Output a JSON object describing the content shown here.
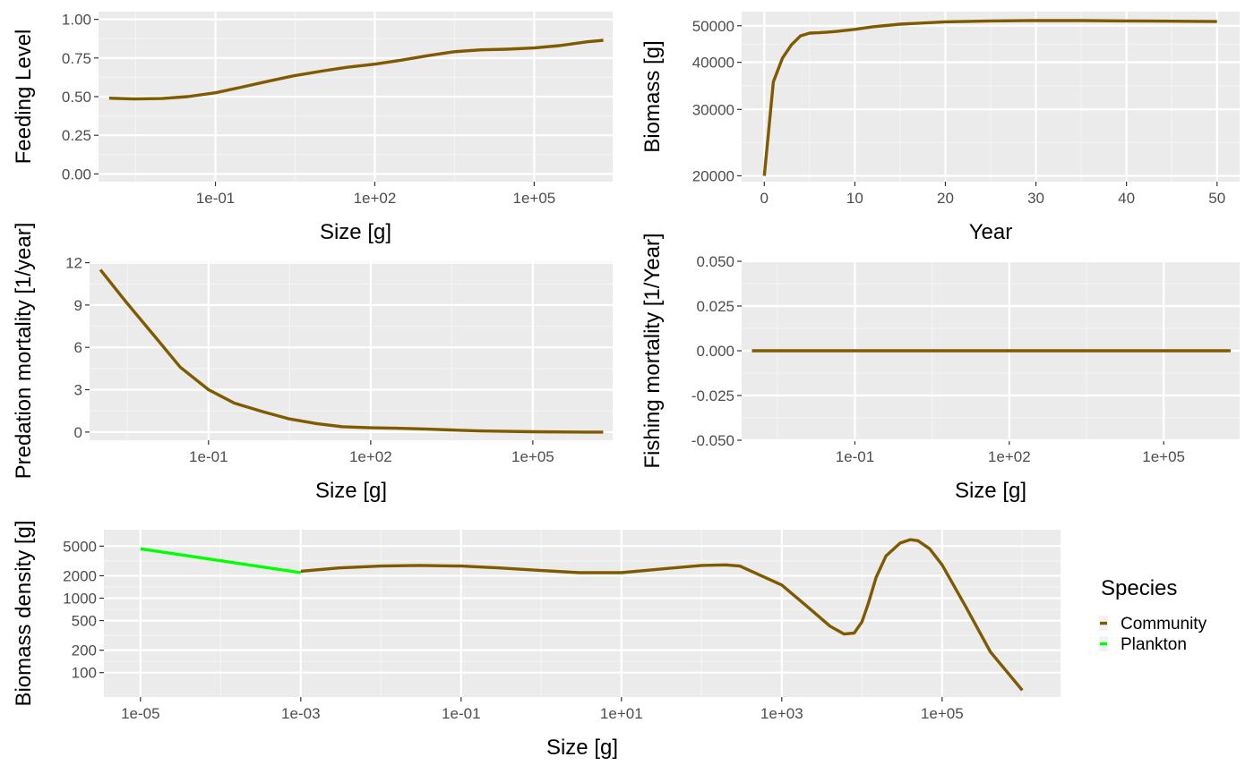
{
  "colors": {
    "panel_bg": "#EBEBEB",
    "grid_major": "#FFFFFF",
    "grid_minor": "#F4F4F4",
    "tick_text": "#4D4D4D",
    "community": "#7F5A00",
    "plankton": "#00FF00"
  },
  "chart_data": [
    {
      "type": "line",
      "xlabel": "Size [g]",
      "ylabel": "Feeding Level",
      "xscale": "log10",
      "xlim": [
        0.00063,
        3000000
      ],
      "ylim": [
        -0.05,
        1.05
      ],
      "xticks": [
        0.1,
        100,
        100000
      ],
      "xtick_labels": [
        "1e-01",
        "1e+02",
        "1e+05"
      ],
      "yticks": [
        0,
        0.25,
        0.5,
        0.75,
        1.0
      ],
      "ytick_labels": [
        "0.00",
        "0.25",
        "0.50",
        "0.75",
        "1.00"
      ],
      "grid": true,
      "series": [
        {
          "name": "Community",
          "x": [
            0.001,
            0.003,
            0.01,
            0.03,
            0.1,
            0.3,
            1,
            3,
            10,
            30,
            100,
            300,
            1000,
            3000,
            10000,
            30000,
            100000,
            300000,
            1000000,
            2000000
          ],
          "y": [
            0.49,
            0.485,
            0.488,
            0.5,
            0.525,
            0.56,
            0.6,
            0.635,
            0.665,
            0.69,
            0.71,
            0.735,
            0.765,
            0.79,
            0.803,
            0.807,
            0.815,
            0.83,
            0.855,
            0.865
          ]
        }
      ]
    },
    {
      "type": "line",
      "xlabel": "Year",
      "ylabel": "Biomass [g]",
      "yscale": "log10",
      "xlim": [
        -2.5,
        52.5
      ],
      "ylim": [
        19300,
        54500
      ],
      "xticks": [
        0,
        10,
        20,
        30,
        40,
        50
      ],
      "xtick_labels": [
        "0",
        "10",
        "20",
        "30",
        "40",
        "50"
      ],
      "yticks": [
        20000,
        30000,
        40000,
        50000
      ],
      "ytick_labels": [
        "20000",
        "30000",
        "40000",
        "50000"
      ],
      "grid": true,
      "series": [
        {
          "name": "Community",
          "x": [
            0,
            1,
            2,
            3,
            4,
            5,
            6,
            7,
            8,
            10,
            12,
            15,
            20,
            25,
            30,
            35,
            40,
            45,
            50
          ],
          "y": [
            20000,
            35500,
            41000,
            44500,
            47000,
            47800,
            47900,
            48100,
            48300,
            48900,
            49700,
            50500,
            51200,
            51500,
            51600,
            51600,
            51500,
            51400,
            51300
          ]
        }
      ]
    },
    {
      "type": "line",
      "xlabel": "Size [g]",
      "ylabel": "Predation mortality [1/year]",
      "xscale": "log10",
      "xlim": [
        0.00063,
        3000000
      ],
      "ylim": [
        -0.58,
        12.1
      ],
      "xticks": [
        0.1,
        100,
        100000
      ],
      "xtick_labels": [
        "1e-01",
        "1e+02",
        "1e+05"
      ],
      "yticks": [
        0,
        3,
        6,
        9,
        12
      ],
      "ytick_labels": [
        "0",
        "3",
        "6",
        "9",
        "12"
      ],
      "grid": true,
      "series": [
        {
          "name": "Community",
          "x": [
            0.001,
            0.003,
            0.01,
            0.03,
            0.1,
            0.3,
            1,
            3,
            10,
            30,
            100,
            300,
            1000,
            3000,
            10000,
            100000,
            1000000,
            2000000
          ],
          "y": [
            11.5,
            9.2,
            6.8,
            4.6,
            3.0,
            2.05,
            1.45,
            0.95,
            0.6,
            0.38,
            0.3,
            0.27,
            0.22,
            0.15,
            0.08,
            0.02,
            0.0,
            0.0
          ]
        }
      ]
    },
    {
      "type": "line",
      "xlabel": "Size [g]",
      "ylabel": "Fishing mortality [1/Year]",
      "xscale": "log10",
      "xlim": [
        0.00063,
        3000000
      ],
      "ylim": [
        -0.05,
        0.05
      ],
      "xticks": [
        0.1,
        100,
        100000
      ],
      "xtick_labels": [
        "1e-01",
        "1e+02",
        "1e+05"
      ],
      "yticks": [
        -0.05,
        -0.025,
        0,
        0.025,
        0.05
      ],
      "ytick_labels": [
        "-0.050",
        "-0.025",
        "0.000",
        "0.025",
        "0.050"
      ],
      "grid": true,
      "series": [
        {
          "name": "Community",
          "x": [
            0.001,
            2000000
          ],
          "y": [
            0,
            0
          ]
        }
      ]
    },
    {
      "type": "line",
      "xlabel": "Size [g]",
      "ylabel": "Biomass density [g]",
      "xscale": "log10",
      "yscale": "log10",
      "xlim": [
        3.5e-06,
        3000000
      ],
      "ylim": [
        47,
        8300
      ],
      "xticks": [
        1e-05,
        0.001,
        0.1,
        10,
        1000,
        100000
      ],
      "xtick_labels": [
        "1e-05",
        "1e-03",
        "1e-01",
        "1e+01",
        "1e+03",
        "1e+05"
      ],
      "yticks": [
        100,
        200,
        500,
        1000,
        2000,
        5000
      ],
      "ytick_labels": [
        "100",
        "200",
        "500",
        "1000",
        "2000",
        "5000"
      ],
      "grid": true,
      "legend": {
        "title": "Species",
        "placement": "right"
      },
      "series": [
        {
          "name": "Community",
          "color_key": "community",
          "x": [
            0.001,
            0.003,
            0.01,
            0.03,
            0.1,
            0.3,
            1,
            3,
            10,
            30,
            100,
            200,
            300,
            1000,
            2000,
            4000,
            6000,
            8000,
            10000,
            12000,
            15000,
            20000,
            30000,
            40000,
            50000,
            70000,
            100000,
            200000,
            400000,
            1000000
          ],
          "y": [
            2300,
            2550,
            2700,
            2750,
            2700,
            2550,
            2350,
            2200,
            2200,
            2450,
            2750,
            2800,
            2700,
            1500,
            800,
            420,
            330,
            340,
            480,
            850,
            1900,
            3700,
            5500,
            6100,
            5900,
            4600,
            2800,
            750,
            190,
            58
          ]
        },
        {
          "name": "Plankton",
          "color_key": "plankton",
          "x": [
            1e-05,
            0.001
          ],
          "y": [
            4600,
            2200
          ]
        }
      ]
    }
  ]
}
